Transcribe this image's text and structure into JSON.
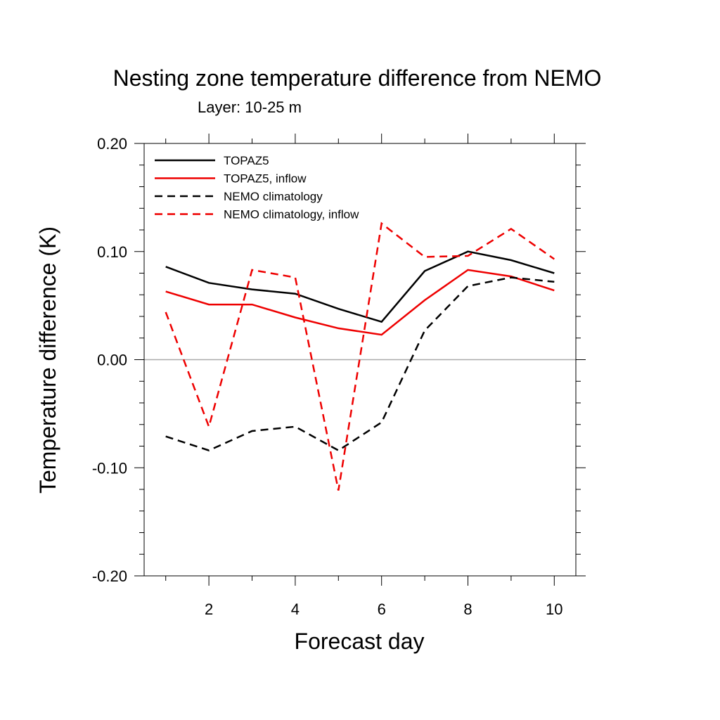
{
  "chart_data": {
    "type": "line",
    "title": "Nesting zone temperature difference from NEMO",
    "subtitle": "Layer: 10-25 m",
    "xlabel": "Forecast day",
    "ylabel": "Temperature difference (K)",
    "xlim": [
      0.5,
      10.5
    ],
    "ylim": [
      -0.2,
      0.2
    ],
    "x_ticks": [
      2,
      4,
      6,
      8,
      10
    ],
    "x_tick_labels": [
      "2",
      "4",
      "6",
      "8",
      "10"
    ],
    "y_ticks": [
      -0.2,
      -0.1,
      0.0,
      0.1,
      0.2
    ],
    "y_tick_labels": [
      "-0.20",
      "-0.10",
      "0.00",
      "0.10",
      "0.20"
    ],
    "reference_line": 0.0,
    "legend_position": "top-left",
    "x": [
      1,
      2,
      3,
      4,
      5,
      6,
      7,
      8,
      9,
      10
    ],
    "series": [
      {
        "name": "TOPAZ5",
        "color": "#000000",
        "dash": "solid",
        "values": [
          0.086,
          0.071,
          0.065,
          0.061,
          0.047,
          0.035,
          0.082,
          0.1,
          0.092,
          0.08
        ]
      },
      {
        "name": "TOPAZ5, inflow",
        "color": "#ee0000",
        "dash": "solid",
        "values": [
          0.063,
          0.051,
          0.051,
          0.039,
          0.029,
          0.023,
          0.055,
          0.083,
          0.077,
          0.064
        ]
      },
      {
        "name": "NEMO climatology",
        "color": "#000000",
        "dash": "dashed",
        "values": [
          -0.071,
          -0.084,
          -0.066,
          -0.062,
          -0.084,
          -0.058,
          0.027,
          0.068,
          0.076,
          0.072
        ]
      },
      {
        "name": "NEMO climatology, inflow",
        "color": "#ee0000",
        "dash": "dashed",
        "values": [
          0.044,
          -0.062,
          0.083,
          0.076,
          -0.121,
          0.126,
          0.095,
          0.096,
          0.121,
          0.093
        ]
      }
    ]
  }
}
